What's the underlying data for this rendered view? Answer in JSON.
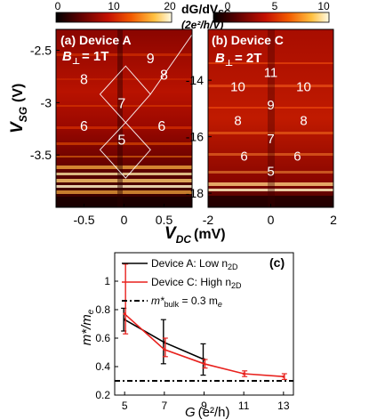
{
  "chart_data": [
    {
      "type": "heatmap",
      "panel_label": "(a) Device A",
      "field_label": "B",
      "field_sub": "⊥",
      "field_value": "= 1T",
      "colorbar": {
        "ticks": [
          "0",
          "10",
          "20"
        ],
        "range": [
          0,
          20
        ]
      },
      "colorbar_title": "dG/dV",
      "colorbar_title_sub": "SG",
      "colorbar_unit": "(2e²/h/V)",
      "xlabel": "V",
      "xlabel_sub": "DC",
      "xunit": "(mV)",
      "ylabel": "V",
      "ylabel_sub": "SG",
      "yunit": "(V)",
      "xlim": [
        -0.85,
        0.85
      ],
      "ylim": [
        -4.0,
        -2.3
      ],
      "x_ticks": [
        -0.5,
        0,
        0.5
      ],
      "x_tick_labels": [
        "-0.5",
        "0",
        "0.5"
      ],
      "y_ticks": [
        -2.5,
        -3,
        -3.5
      ],
      "y_tick_labels": [
        "-2.5",
        "-3",
        "-3.5"
      ],
      "diamond_labels": [
        {
          "text": "9",
          "x": 0.33,
          "y": -2.57
        },
        {
          "text": "8",
          "x": -0.5,
          "y": -2.77
        },
        {
          "text": "8",
          "x": 0.5,
          "y": -2.73
        },
        {
          "text": "7",
          "x": -0.03,
          "y": -3.0
        },
        {
          "text": "6",
          "x": -0.5,
          "y": -3.22
        },
        {
          "text": "6",
          "x": 0.47,
          "y": -3.22
        },
        {
          "text": "5",
          "x": -0.03,
          "y": -3.35
        }
      ],
      "diamond_vertices": [
        [
          -0.3,
          -2.92
        ],
        [
          0.02,
          -2.65
        ],
        [
          0.33,
          -2.92
        ],
        [
          0.02,
          -3.19
        ],
        [
          -0.3,
          -3.45
        ],
        [
          0.02,
          -3.72
        ],
        [
          0.33,
          -3.45
        ],
        [
          0.85,
          -2.35
        ]
      ]
    },
    {
      "type": "heatmap",
      "panel_label": "(b) Device C",
      "field_label": "B",
      "field_sub": "⊥",
      "field_value": "= 2T",
      "colorbar": {
        "ticks": [
          "0",
          "5",
          "10"
        ],
        "range": [
          0,
          10
        ]
      },
      "xlabel": "V",
      "xlabel_sub": "DC",
      "xunit": "(mV)",
      "xlim": [
        -2,
        2
      ],
      "ylim": [
        -18.5,
        -12.2
      ],
      "x_ticks": [
        -2,
        0,
        2
      ],
      "x_tick_labels": [
        "-2",
        "0",
        "2"
      ],
      "y_ticks": [
        -14,
        -16,
        -18
      ],
      "y_tick_labels": [
        "-14",
        "-16",
        "-18"
      ],
      "diamond_labels": [
        {
          "text": "11",
          "x": 0.0,
          "y": -13.7
        },
        {
          "text": "10",
          "x": -1.05,
          "y": -14.2
        },
        {
          "text": "10",
          "x": 1.05,
          "y": -14.2
        },
        {
          "text": "9",
          "x": 0.0,
          "y": -14.85
        },
        {
          "text": "8",
          "x": -1.05,
          "y": -15.4
        },
        {
          "text": "8",
          "x": 1.05,
          "y": -15.4
        },
        {
          "text": "7",
          "x": 0.0,
          "y": -16.05
        },
        {
          "text": "6",
          "x": -0.85,
          "y": -16.65
        },
        {
          "text": "6",
          "x": 0.85,
          "y": -16.65
        },
        {
          "text": "5",
          "x": 0.0,
          "y": -17.2
        }
      ]
    },
    {
      "type": "line",
      "panel_label": "(c)",
      "xlabel": "G",
      "xunit": "(e²/h)",
      "ylabel": "m*/m",
      "ylabel_sub": "e",
      "xlim": [
        4.5,
        13.5
      ],
      "ylim": [
        0.2,
        1.2
      ],
      "x_ticks": [
        5,
        7,
        9,
        11,
        13
      ],
      "y_ticks": [
        0.2,
        0.4,
        0.6,
        0.8,
        1.0
      ],
      "x_tick_labels": [
        "5",
        "7",
        "9",
        "11",
        "13"
      ],
      "y_tick_labels": [
        "0.2",
        "0.4",
        "0.6",
        "0.8",
        "1"
      ],
      "legend_position": "top-right",
      "legend": [
        {
          "label": "Device A: Low n",
          "sub": "2D",
          "color": "#000000",
          "style": "solid"
        },
        {
          "label": "Device C: High n",
          "sub": "2D",
          "color": "#e8211d",
          "style": "solid"
        },
        {
          "label": "m*",
          "sub": "bulk",
          "tail": " = 0.3 m",
          "tail_sub": "e",
          "color": "#000000",
          "style": "dashdot"
        }
      ],
      "series": [
        {
          "color": "#000000",
          "x": [
            5,
            7,
            9
          ],
          "y": [
            0.73,
            0.57,
            0.45
          ],
          "err_low": [
            0.08,
            0.15,
            0.11
          ],
          "err_high": [
            0.08,
            0.16,
            0.11
          ]
        },
        {
          "color": "#e8211d",
          "x": [
            5,
            7,
            9,
            11,
            13
          ],
          "y": [
            0.77,
            0.52,
            0.42,
            0.35,
            0.33
          ],
          "err_low": [
            0.14,
            0.05,
            0.03,
            0.02,
            0.02
          ],
          "err_high": [
            0.35,
            0.08,
            0.03,
            0.02,
            0.02
          ]
        }
      ],
      "reference_line": {
        "y": 0.3,
        "color": "#000000",
        "style": "dashdot"
      }
    }
  ]
}
